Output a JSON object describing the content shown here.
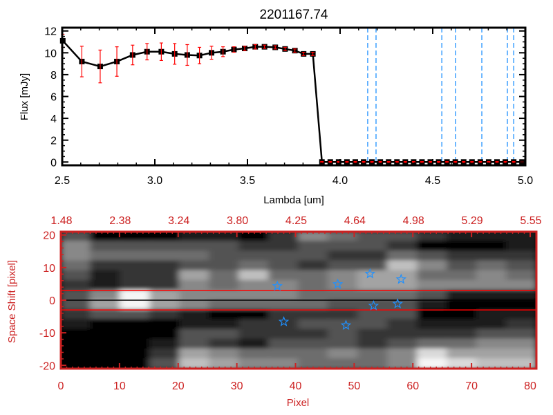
{
  "chart_data": [
    {
      "type": "line",
      "title": "2201167.74",
      "xlabel": "Lambda [um]",
      "ylabel": "Flux [mJy]",
      "xlim": [
        2.5,
        5.0
      ],
      "ylim": [
        -0.3,
        12.3
      ],
      "xticks": [
        "2.5",
        "3.0",
        "3.5",
        "4.0",
        "4.5",
        "5.0"
      ],
      "xtick_values": [
        2.5,
        3.0,
        3.5,
        4.0,
        4.5,
        5.0
      ],
      "yticks": [
        "0",
        "2",
        "4",
        "6",
        "8",
        "10",
        "12"
      ],
      "ytick_values": [
        0,
        2,
        4,
        6,
        8,
        10,
        12
      ],
      "grid": false,
      "line_color": "#000000",
      "errorbar_color": "#ff0000",
      "series": [
        {
          "x": [
            2.503,
            2.606,
            2.705,
            2.795,
            2.88,
            2.958,
            3.035,
            3.107,
            3.175,
            3.241,
            3.306,
            3.368,
            3.427,
            3.485,
            3.542,
            3.592,
            3.65,
            3.703,
            3.756,
            3.803,
            3.853,
            3.902,
            3.947,
            3.992,
            4.037,
            4.082,
            4.127,
            4.172,
            4.217,
            4.262,
            4.307,
            4.352,
            4.397,
            4.442,
            4.487,
            4.532,
            4.577,
            4.622,
            4.667,
            4.712,
            4.757,
            4.802,
            4.847,
            4.892,
            4.937,
            4.982
          ],
          "y": [
            11.1,
            9.2,
            8.75,
            9.2,
            9.8,
            10.1,
            10.1,
            9.9,
            9.8,
            9.75,
            10.0,
            10.1,
            10.3,
            10.4,
            10.55,
            10.55,
            10.5,
            10.35,
            10.2,
            9.9,
            9.9,
            0,
            0,
            0,
            0,
            0,
            0,
            0,
            0,
            0,
            0,
            0,
            0,
            0,
            0,
            0,
            0,
            0,
            0,
            0,
            0,
            0,
            0,
            0,
            0,
            0
          ],
          "yerr": [
            0.6,
            1.4,
            1.5,
            1.35,
            0.9,
            0.75,
            0.8,
            0.95,
            0.95,
            0.75,
            0.6,
            0.45,
            0.25,
            0.2,
            0.2,
            0.15,
            0.15,
            0.15,
            0.15,
            0.15,
            0.15,
            0.05,
            0.05,
            0.05,
            0.05,
            0.05,
            0.05,
            0.05,
            0.05,
            0.05,
            0.05,
            0.05,
            0.05,
            0.05,
            0.05,
            0.05,
            0.05,
            0.05,
            0.05,
            0.05,
            0.05,
            0.05,
            0.05,
            0.05,
            0.05,
            0.05
          ]
        }
      ],
      "zero_line": {
        "x_from": 3.902,
        "x_to": 5.0,
        "y": 0,
        "color": "#ff0000",
        "style": "dashed"
      },
      "vertical_lines": {
        "x": [
          4.149,
          4.194,
          4.549,
          4.623,
          4.765,
          4.903,
          4.937
        ],
        "color": "#1e90ff",
        "style": "dashed"
      }
    },
    {
      "type": "heatmap",
      "xlabel": "Pixel",
      "ylabel": "Space Shift [pixel]",
      "xlim": [
        0,
        80
      ],
      "ylim": [
        -21,
        21
      ],
      "xticks": [
        "0",
        "10",
        "20",
        "30",
        "40",
        "50",
        "60",
        "70",
        "80"
      ],
      "xtick_values": [
        0,
        10,
        20,
        30,
        40,
        50,
        60,
        70,
        80
      ],
      "yticks": [
        "-20",
        "-10",
        "0",
        "10",
        "20"
      ],
      "ytick_values": [
        -20,
        -10,
        0,
        10,
        20
      ],
      "top_xticks": [
        "1.48",
        "2.38",
        "3.24",
        "3.80",
        "4.25",
        "4.64",
        "4.98",
        "5.29",
        "5.55"
      ],
      "colormap": "grayscale",
      "axis_color": "#cc2222",
      "intensity_scale": [
        0,
        9
      ],
      "intensity_rows_top_to_bottom": [
        [
          3,
          0,
          0,
          0,
          1,
          1,
          0,
          2,
          5,
          4,
          3,
          3,
          2,
          1,
          1,
          1
        ],
        [
          5,
          3,
          3,
          3,
          3,
          3,
          2,
          2,
          3,
          3,
          3,
          2,
          0,
          0,
          0,
          1
        ],
        [
          5,
          4,
          4,
          4,
          4,
          3,
          3,
          3,
          3,
          2,
          2,
          4,
          3,
          2,
          2,
          2
        ],
        [
          4,
          2,
          2,
          2,
          3,
          3,
          4,
          3,
          2,
          3,
          3,
          7,
          5,
          3,
          4,
          3
        ],
        [
          3,
          1,
          2,
          2,
          6,
          4,
          7,
          4,
          4,
          5,
          6,
          6,
          4,
          4,
          5,
          4
        ],
        [
          2,
          1,
          2,
          2,
          5,
          4,
          5,
          5,
          4,
          5,
          6,
          6,
          5,
          5,
          5,
          5
        ],
        [
          3,
          5,
          9,
          6,
          5,
          5,
          5,
          5,
          4,
          4,
          4,
          4,
          3,
          1,
          1,
          1
        ],
        [
          3,
          6,
          9,
          6,
          5,
          4,
          4,
          4,
          4,
          3,
          3,
          3,
          1,
          0,
          0,
          0
        ],
        [
          2,
          3,
          3,
          2,
          1,
          0,
          0,
          2,
          2,
          2,
          3,
          3,
          0,
          0,
          1,
          1
        ],
        [
          1,
          0,
          0,
          0,
          1,
          1,
          2,
          2,
          3,
          3,
          3,
          2,
          1,
          1,
          1,
          2
        ],
        [
          0,
          0,
          0,
          0,
          3,
          3,
          2,
          2,
          2,
          3,
          2,
          2,
          2,
          2,
          3,
          3
        ],
        [
          0,
          0,
          0,
          1,
          3,
          2,
          1,
          3,
          3,
          3,
          2,
          3,
          4,
          4,
          5,
          5
        ],
        [
          0,
          0,
          0,
          2,
          6,
          5,
          4,
          4,
          4,
          5,
          4,
          5,
          8,
          6,
          6,
          6
        ],
        [
          0,
          0,
          0,
          3,
          7,
          6,
          5,
          5,
          4,
          4,
          4,
          5,
          9,
          8,
          7,
          7
        ]
      ],
      "horizontal_lines": [
        {
          "y": 3,
          "color": "#ff0000"
        },
        {
          "y": 0,
          "color": "#000000"
        },
        {
          "y": -3,
          "color": "#ff0000"
        }
      ],
      "markers": {
        "symbol": "star",
        "color": "#1e90ff",
        "x": [
          36.9,
          47.2,
          52.7,
          58.0,
          53.3,
          57.4,
          38.0,
          48.6
        ],
        "y": [
          4.3,
          4.9,
          8.1,
          6.4,
          -1.7,
          -1.1,
          -6.6,
          -7.7
        ]
      }
    }
  ]
}
